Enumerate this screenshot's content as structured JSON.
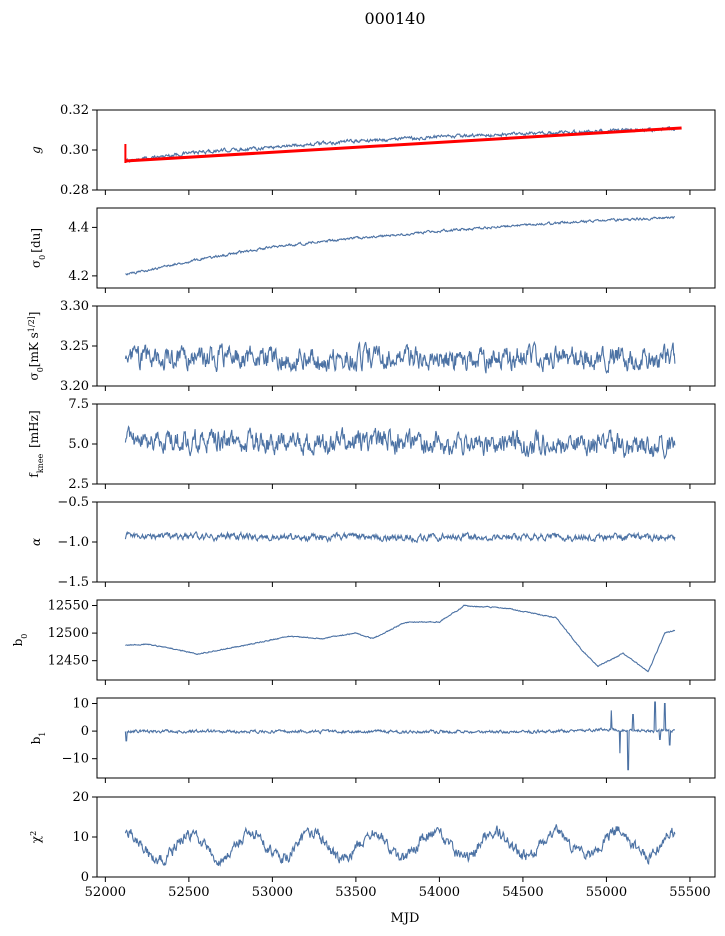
{
  "figure": {
    "title": "000140"
  },
  "chart_data": {
    "type": "line",
    "title": "000140",
    "xlabel": "MJD",
    "xlim": [
      51950,
      55650
    ],
    "xticks": [
      52000,
      52500,
      53000,
      53500,
      54000,
      54500,
      55000,
      55500
    ],
    "x_range": [
      52120,
      55410
    ],
    "line_color": "#4c72a4",
    "fit_color": "#ff0000",
    "panels": [
      {
        "ylabel": "g",
        "ylim": [
          0.28,
          0.32
        ],
        "yticks": [
          0.28,
          0.3,
          0.32
        ],
        "ytick_labels": [
          "0.28",
          "0.30",
          "0.32"
        ],
        "trend": [
          [
            52120,
            0.2945
          ],
          [
            52500,
            0.2985
          ],
          [
            53000,
            0.3015
          ],
          [
            53500,
            0.3045
          ],
          [
            54000,
            0.3065
          ],
          [
            54500,
            0.308
          ],
          [
            55000,
            0.3095
          ],
          [
            55450,
            0.3105
          ]
        ],
        "noise": 0.0007,
        "fit": [
          [
            52120,
            0.2945
          ],
          [
            55450,
            0.311
          ]
        ],
        "start_spike": [
          52120,
          0.2935,
          0.303
        ]
      },
      {
        "ylabel": "σ0 [du]",
        "ylim": [
          4.15,
          4.48
        ],
        "yticks": [
          4.2,
          4.4
        ],
        "ytick_labels": [
          "4.2",
          "4.4"
        ],
        "trend": [
          [
            52120,
            4.205
          ],
          [
            52500,
            4.26
          ],
          [
            53000,
            4.32
          ],
          [
            53500,
            4.355
          ],
          [
            54000,
            4.385
          ],
          [
            54500,
            4.41
          ],
          [
            55000,
            4.43
          ],
          [
            55400,
            4.44
          ]
        ],
        "noise": 0.004
      },
      {
        "ylabel": "σ0[mK s^1/2]",
        "ylim": [
          3.2,
          3.3
        ],
        "yticks": [
          3.2,
          3.25,
          3.3
        ],
        "ytick_labels": [
          "3.20",
          "3.25",
          "3.30"
        ],
        "trend": [
          [
            52120,
            3.235
          ],
          [
            55400,
            3.235
          ]
        ],
        "noise": 0.011
      },
      {
        "ylabel": "fknee [mHz]",
        "ylim": [
          2.5,
          7.5
        ],
        "yticks": [
          2.5,
          5.0,
          7.5
        ],
        "ytick_labels": [
          "2.5",
          "5.0",
          "7.5"
        ],
        "trend": [
          [
            52120,
            5.2
          ],
          [
            55400,
            4.95
          ]
        ],
        "noise": 0.55
      },
      {
        "ylabel": "α",
        "ylim": [
          -1.5,
          -0.5
        ],
        "yticks": [
          -1.5,
          -1.0,
          -0.5
        ],
        "ytick_labels": [
          "−1.5",
          "−1.0",
          "−0.5"
        ],
        "trend": [
          [
            52120,
            -0.93
          ],
          [
            55400,
            -0.95
          ]
        ],
        "noise": 0.035
      },
      {
        "ylabel": "b0",
        "ylim": [
          12415,
          12560
        ],
        "yticks": [
          12450,
          12500,
          12550
        ],
        "ytick_labels": [
          "12450",
          "12500",
          "12550"
        ],
        "trend": [
          [
            52120,
            12478
          ],
          [
            52250,
            12480
          ],
          [
            52400,
            12472
          ],
          [
            52550,
            12462
          ],
          [
            52800,
            12476
          ],
          [
            53100,
            12494
          ],
          [
            53300,
            12490
          ],
          [
            53500,
            12500
          ],
          [
            53600,
            12490
          ],
          [
            53800,
            12520
          ],
          [
            54000,
            12520
          ],
          [
            54150,
            12550
          ],
          [
            54400,
            12545
          ],
          [
            54700,
            12528
          ],
          [
            54850,
            12470
          ],
          [
            54950,
            12440
          ],
          [
            55100,
            12463
          ],
          [
            55250,
            12430
          ],
          [
            55350,
            12500
          ],
          [
            55410,
            12505
          ]
        ],
        "noise": 0.8
      },
      {
        "ylabel": "b1",
        "ylim": [
          -17,
          12
        ],
        "yticks": [
          -10,
          0,
          10
        ],
        "ytick_labels": [
          "−10",
          "0",
          "10"
        ],
        "trend": [
          [
            52120,
            0
          ],
          [
            54500,
            -0.3
          ],
          [
            55000,
            0.5
          ],
          [
            55400,
            0
          ]
        ],
        "noise": 0.45,
        "spikes": [
          [
            52125,
            -3.5
          ],
          [
            55030,
            7.5
          ],
          [
            55080,
            -8
          ],
          [
            55130,
            -14
          ],
          [
            55160,
            6
          ],
          [
            55290,
            10.5
          ],
          [
            55320,
            -3
          ],
          [
            55350,
            10
          ],
          [
            55380,
            -5
          ]
        ]
      },
      {
        "ylabel": "χ2",
        "ylim": [
          0,
          20
        ],
        "yticks": [
          0,
          10,
          20
        ],
        "ytick_labels": [
          "0",
          "10",
          "20"
        ],
        "trend": [
          [
            52120,
            7.5
          ],
          [
            55400,
            8.5
          ]
        ],
        "noise": 1.2,
        "oscillation": {
          "amplitude": 3.2,
          "period": 365
        }
      }
    ]
  }
}
